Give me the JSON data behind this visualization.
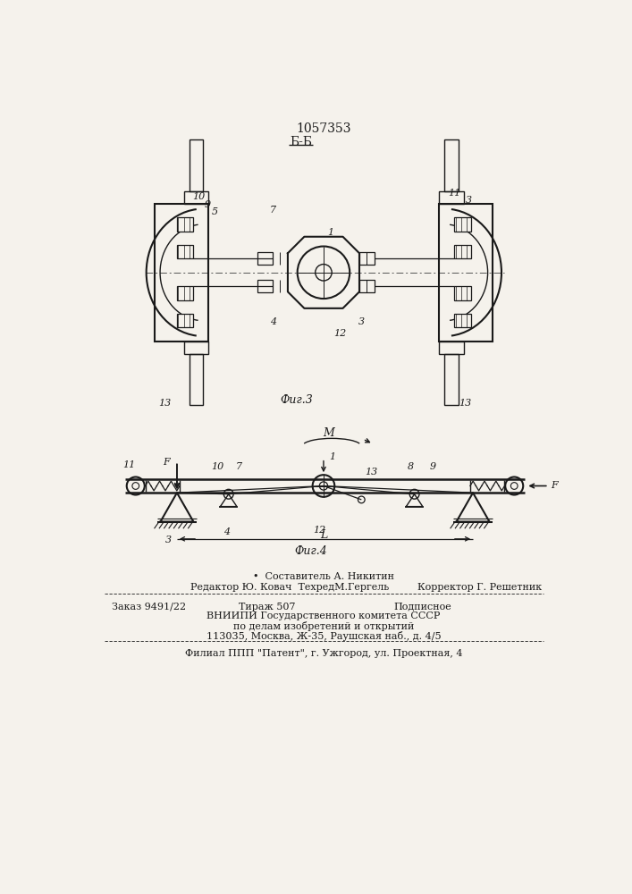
{
  "title_patent": "1057353",
  "fig3_label": "Б-Б",
  "fig3_caption": "Фиг.3",
  "fig4_caption": "Фиг.4",
  "text_M": "М",
  "text_L": "L",
  "footer_line1": "•  Составитель А. Никитин",
  "footer_line2a": "Редактор Ю. Ковач  ТехредМ.Гергель",
  "footer_line2b": "Корректор Г. Решетник",
  "footer_line3a": "Заказ 9491/22",
  "footer_line3b": "Тираж 507",
  "footer_line3c": "Подписное",
  "footer_line4": "ВНИИПИ Государственного комитета СССР",
  "footer_line5": "по делам изобретений и открытий",
  "footer_line6": "113035, Москва, Ж-35, Раушская наб., д. 4/5",
  "footer_line7": "Филиал ППП \"Патент\", г. Ужгород, ул. Проектная, 4",
  "bg_color": "#f5f2ec",
  "line_color": "#1a1a1a"
}
